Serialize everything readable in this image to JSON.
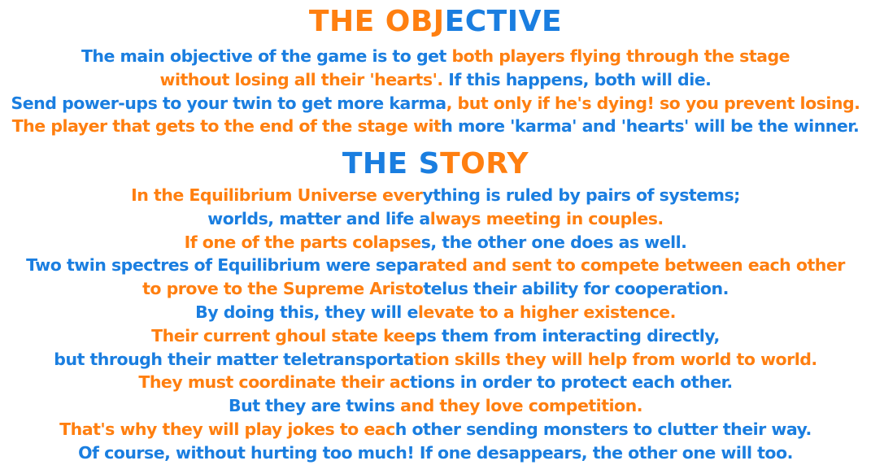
{
  "colors": {
    "blue": "#1a7ee0",
    "orange": "#ff7f10",
    "background": "#ffffff"
  },
  "objective": {
    "title": [
      {
        "text": "THE OBJ",
        "color": "o"
      },
      {
        "text": "ECTIVE",
        "color": "b"
      }
    ],
    "lines": [
      [
        {
          "text": "The main objective of the game is to get ",
          "color": "b"
        },
        {
          "text": "both players flying through the stage",
          "color": "o"
        }
      ],
      [
        {
          "text": "without losing all their 'hearts'. ",
          "color": "o"
        },
        {
          "text": "If this happens, both will die.",
          "color": "b"
        }
      ],
      [
        {
          "text": "Send power-ups to your twin to get more karma",
          "color": "b"
        },
        {
          "text": ", but only if he's dying! so you prevent losing.",
          "color": "o"
        }
      ],
      [
        {
          "text": "The player that gets to the end of the stage wit",
          "color": "o"
        },
        {
          "text": "h more 'karma' and 'hearts' will be the winner.",
          "color": "b"
        }
      ]
    ]
  },
  "story": {
    "title": [
      {
        "text": "THE S",
        "color": "b"
      },
      {
        "text": "TORY",
        "color": "o"
      }
    ],
    "lines": [
      [
        {
          "text": "In the Equilibrium Universe ever",
          "color": "o"
        },
        {
          "text": "ything is ruled by pairs of systems;",
          "color": "b"
        }
      ],
      [
        {
          "text": "worlds, matter and life a",
          "color": "b"
        },
        {
          "text": "lways meeting in couples.",
          "color": "o"
        }
      ],
      [
        {
          "text": "If one of the parts colapse",
          "color": "o"
        },
        {
          "text": "s, the other one does as well.",
          "color": "b"
        }
      ],
      [
        {
          "text": "Two twin spectres of Equilibrium were sepa",
          "color": "b"
        },
        {
          "text": "rated and sent to compete between each other",
          "color": "o"
        }
      ],
      [
        {
          "text": "to prove to the Supreme Aristo",
          "color": "o"
        },
        {
          "text": "telus their ability for cooperation.",
          "color": "b"
        }
      ],
      [
        {
          "text": "By doing this, they will e",
          "color": "b"
        },
        {
          "text": "levate to a higher existence.",
          "color": "o"
        }
      ],
      [
        {
          "text": "Their current ghoul state kee",
          "color": "o"
        },
        {
          "text": "ps them from interacting directly,",
          "color": "b"
        }
      ],
      [
        {
          "text": "but through their matter teletransporta",
          "color": "b"
        },
        {
          "text": "tion skills they will help from world to world.",
          "color": "o"
        }
      ],
      [
        {
          "text": "They must coordinate their ac",
          "color": "o"
        },
        {
          "text": "tions in order to protect each other.",
          "color": "b"
        }
      ],
      [
        {
          "text": "But they are twins ",
          "color": "b"
        },
        {
          "text": "and they love competition.",
          "color": "o"
        }
      ],
      [
        {
          "text": "That's why they will play jokes to eac",
          "color": "o"
        },
        {
          "text": "h other sending monsters to clutter their way.",
          "color": "b"
        }
      ],
      [
        {
          "text": "Of course, without hurting too much! If one desappears, the other one will too.",
          "color": "b"
        }
      ]
    ]
  }
}
